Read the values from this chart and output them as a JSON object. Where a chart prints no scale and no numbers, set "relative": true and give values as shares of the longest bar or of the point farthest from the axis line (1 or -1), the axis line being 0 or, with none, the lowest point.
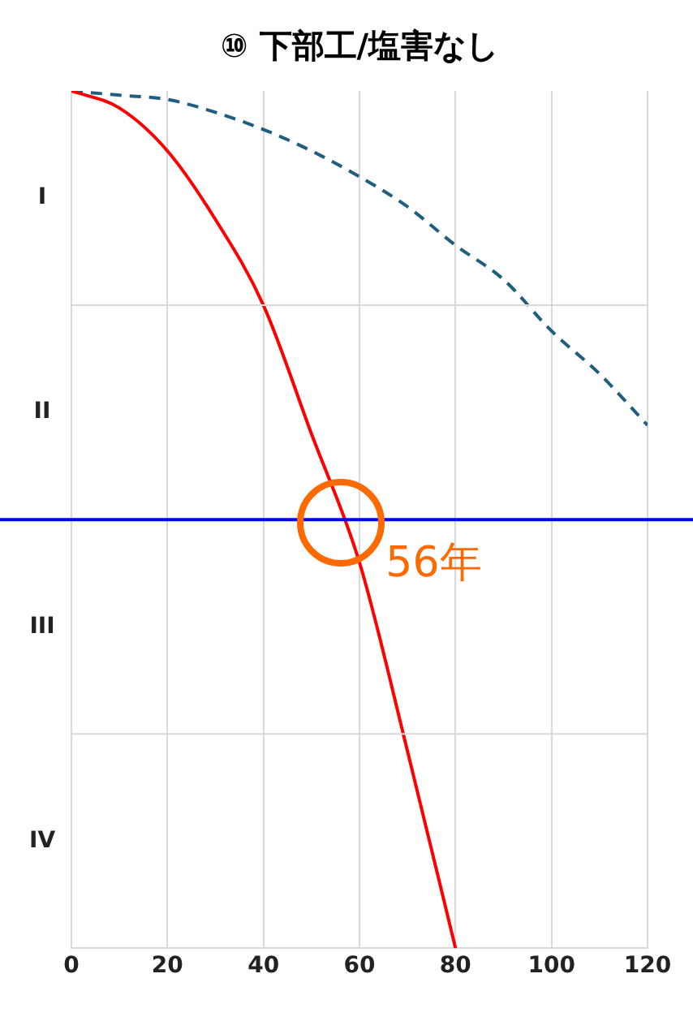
{
  "chart_data": {
    "type": "line",
    "title": "⑩ 下部工/塩害なし",
    "relative": true,
    "series": [
      {
        "color": "#ff0000",
        "line_style": "solid",
        "x": [
          0,
          10,
          20,
          30,
          40,
          50,
          60,
          70,
          80
        ],
        "values": [
          1,
          0.98,
          0.93,
          0.85,
          0.75,
          0.6,
          0.45,
          0.23,
          0
        ]
      },
      {
        "color": "#205e80",
        "line_style": "dashed",
        "x": [
          0,
          10,
          20,
          30,
          40,
          50,
          60,
          70,
          80,
          90,
          100,
          110,
          120
        ],
        "values": [
          1,
          0.995,
          0.99,
          0.975,
          0.955,
          0.93,
          0.9,
          0.865,
          0.82,
          0.78,
          0.72,
          0.67,
          0.61
        ]
      }
    ],
    "xlim": [
      0,
      120
    ],
    "xticks": [
      0,
      20,
      40,
      60,
      80,
      100,
      120
    ],
    "ref_lines": [
      {
        "axis": "y",
        "value": 0.75,
        "color": "#d9d9d9"
      },
      {
        "axis": "y",
        "value": 0.5,
        "color": "#0000ff"
      },
      {
        "axis": "y",
        "value": 0.25,
        "color": "#d9d9d9"
      }
    ],
    "annotations": [
      "I",
      "II",
      "III",
      "IV",
      {
        "text": "56年",
        "x": 56,
        "y": 0.5
      }
    ],
    "grid": "x",
    "legend": false,
    "marker": "none"
  }
}
